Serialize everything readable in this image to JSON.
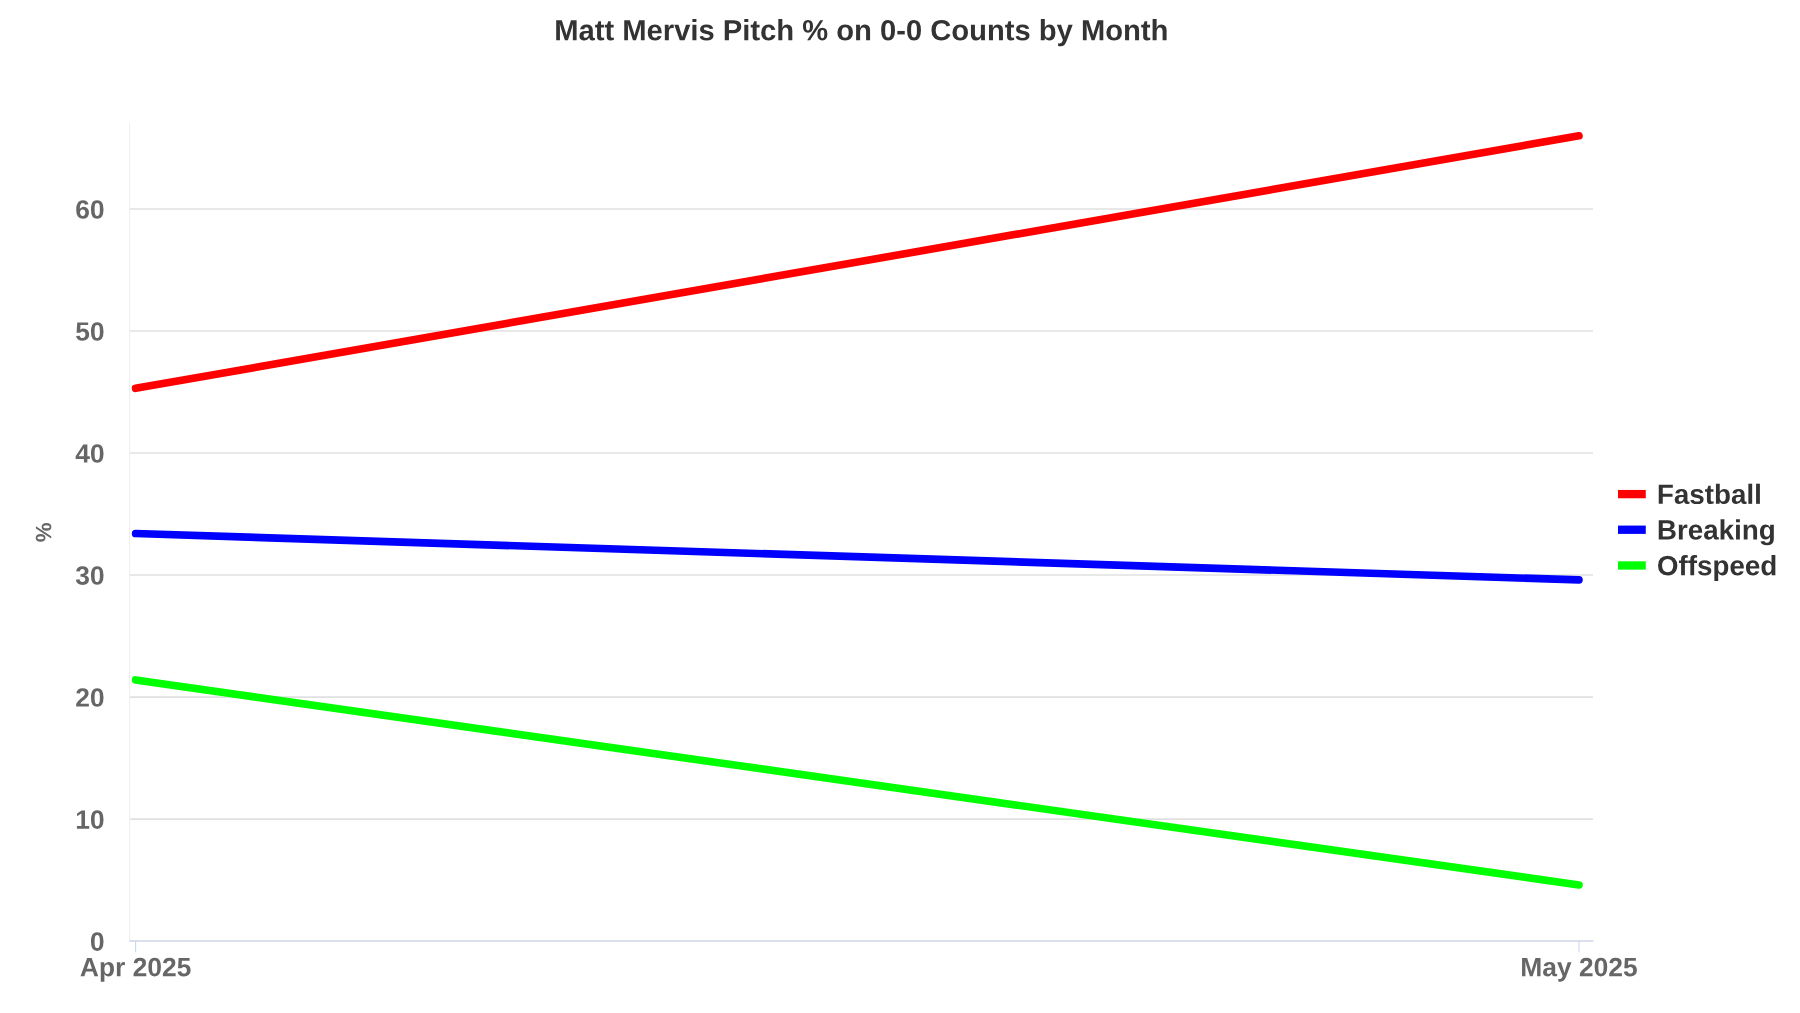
{
  "chart_data": {
    "type": "line",
    "title": "Matt Mervis Pitch % on 0-0 Counts by Month",
    "ylabel": "%",
    "x": [
      "2025-04",
      "2025-05"
    ],
    "xticks": [
      {
        "value": "2025-04",
        "label": "Apr 2025"
      },
      {
        "value": "2025-05",
        "label": "May 2025"
      }
    ],
    "series": [
      {
        "name": "Fastball",
        "color": "#ff0000",
        "values": [
          45.3,
          66.0
        ]
      },
      {
        "name": "Breaking",
        "color": "#0000ff",
        "values": [
          33.4,
          29.6
        ]
      },
      {
        "name": "Offspeed",
        "color": "#00ff00",
        "values": [
          21.4,
          4.6
        ]
      }
    ],
    "xlim": [
      "2025-03-31T21:00",
      "2025-05-01T07:00"
    ],
    "ylim": [
      0,
      67
    ],
    "yticks": [
      0,
      10,
      20,
      30,
      40,
      50,
      60
    ],
    "grid": "y",
    "legend": "right",
    "marker": "none",
    "line_style": "solid"
  }
}
